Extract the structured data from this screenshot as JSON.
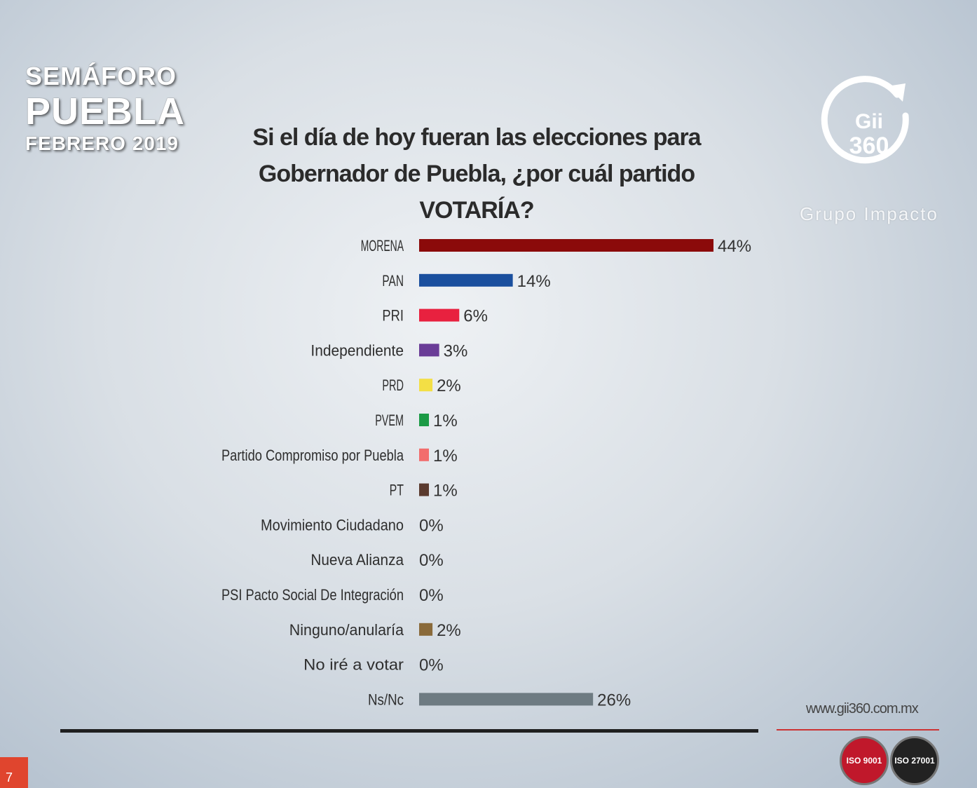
{
  "brand": {
    "line1": "SEMÁFORO",
    "line2": "PUEBLA",
    "line3": "FEBRERO 2019"
  },
  "title": {
    "line1": "Si el día de hoy fueran las elecciones para",
    "line2": "Gobernador de Puebla, ¿por cuál partido VOTARÍA?"
  },
  "logo": {
    "mark_line1": "Gii",
    "mark_line2": "360",
    "company": "Grupo Impacto"
  },
  "footer": {
    "website": "www.gii360.com.mx",
    "cert_badge_1": "ISO 9001",
    "cert_badge_2": "ISO 27001",
    "page_number": "7"
  },
  "chart_data": {
    "type": "bar",
    "orientation": "horizontal",
    "categories": [
      "MORENA",
      "PAN",
      "PRI",
      "Independiente",
      "PRD",
      "PVEM",
      "Partido Compromiso por Puebla",
      "PT",
      "Movimiento Ciudadano",
      "Nueva Alianza",
      "PSI Pacto Social De Integración",
      "Ninguno/anularía",
      "No iré a votar",
      "Ns/Nc"
    ],
    "values": [
      44,
      14,
      6,
      3,
      2,
      1,
      1,
      1,
      0,
      0,
      0,
      2,
      0,
      26
    ],
    "value_labels": [
      "44%",
      "14%",
      "6%",
      "3%",
      "2%",
      "1%",
      "1%",
      "1%",
      "0%",
      "0%",
      "0%",
      "2%",
      "0%",
      "26%"
    ],
    "colors": [
      "#8b0a0a",
      "#1a4f9e",
      "#e8213f",
      "#6a3c97",
      "#f3df45",
      "#1b9a45",
      "#f26d6d",
      "#5a3a2e",
      "#999999",
      "#999999",
      "#999999",
      "#8a6a3a",
      "#999999",
      "#6e7b82"
    ],
    "title": "Si el día de hoy fueran las elecciones para Gobernador de Puebla, ¿por cuál partido VOTARÍA?"
  }
}
